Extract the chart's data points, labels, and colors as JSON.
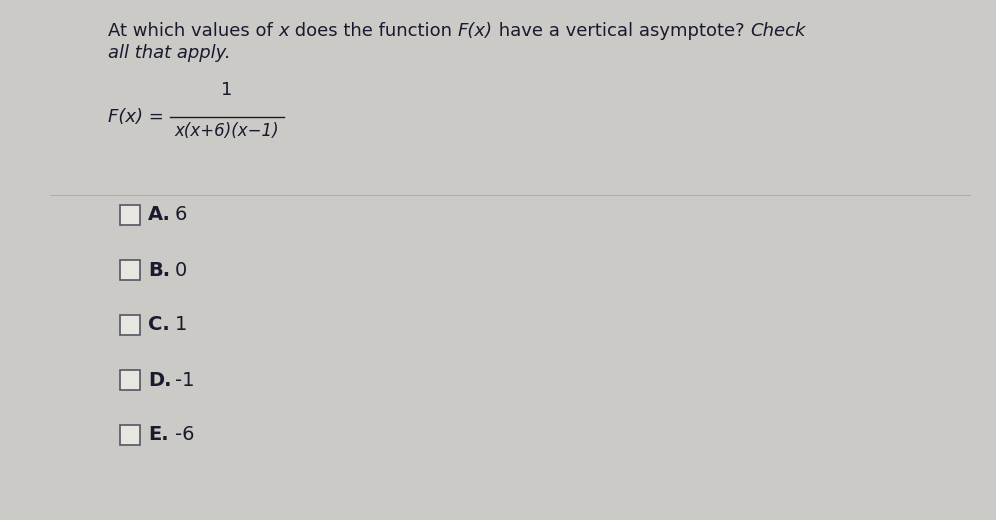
{
  "background_color": "#cccac6",
  "text_color": "#1a1a2e",
  "checkbox_fill": "#e8e6e0",
  "checkbox_border": "#555566",
  "line_color": "#b0aeaa",
  "title_fontsize": 13.0,
  "option_fontsize": 14.0,
  "formula_fontsize": 13.0,
  "options": [
    {
      "letter": "A.",
      "value": "6"
    },
    {
      "letter": "B.",
      "value": "0"
    },
    {
      "letter": "C.",
      "value": "1"
    },
    {
      "letter": "D.",
      "value": "-1"
    },
    {
      "letter": "E.",
      "value": "-6"
    }
  ]
}
